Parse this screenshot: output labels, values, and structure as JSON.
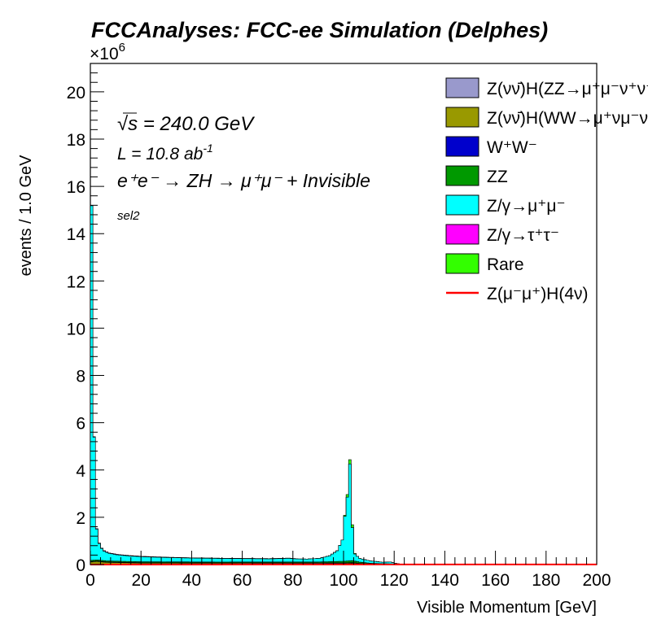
{
  "title": "FCCAnalyses: FCC-ee Simulation (Delphes)",
  "chart_data": {
    "type": "bar",
    "title": "FCCAnalyses: FCC-ee Simulation (Delphes)",
    "xlabel": "Visible Momentum [GeV]",
    "ylabel": "events / 1.0 GeV",
    "y_exponent_label": "×10",
    "y_exponent_power": "6",
    "xlim": [
      0,
      200
    ],
    "ylim": [
      0,
      21.2
    ],
    "x_ticks": [
      "0",
      "20",
      "40",
      "60",
      "80",
      "100",
      "120",
      "140",
      "160",
      "180",
      "200"
    ],
    "y_ticks": [
      "0",
      "2",
      "4",
      "6",
      "8",
      "10",
      "12",
      "14",
      "16",
      "18",
      "20"
    ],
    "stacked": true,
    "grid": false,
    "legend_position": "top-right",
    "annotations": {
      "energy_prefix": "√",
      "energy_label": "s = 240.0 GeV",
      "lumi_label": "L = 10.8 ab",
      "lumi_power": "-1",
      "process_label": "e⁺e⁻ → ZH → μ⁺μ⁻ + Invisible",
      "selection": "sel2"
    },
    "series": [
      {
        "name": "Z(νν̄)H(ZZ→μ⁺μ⁻ν⁺ν⁻)",
        "type": "fill",
        "color": "#9999cc",
        "values": [
          [
            0,
            0.01
          ],
          [
            100,
            0.02
          ],
          [
            103,
            0.04
          ],
          [
            106,
            0.01
          ],
          [
            120,
            0.0
          ]
        ]
      },
      {
        "name": "Z(νν̄)H(WW→μ⁺νμ⁻ν)",
        "type": "fill",
        "color": "#999900",
        "values": [
          [
            0,
            0.1
          ],
          [
            2,
            0.12
          ],
          [
            6,
            0.08
          ],
          [
            20,
            0.05
          ],
          [
            60,
            0.04
          ],
          [
            100,
            0.03
          ],
          [
            120,
            0.01
          ],
          [
            200,
            0.0
          ]
        ]
      },
      {
        "name": "W⁺W⁻",
        "type": "fill",
        "color": "#0000cc",
        "values": [
          [
            0,
            0.02
          ],
          [
            50,
            0.02
          ],
          [
            100,
            0.02
          ],
          [
            120,
            0.0
          ]
        ]
      },
      {
        "name": "ZZ",
        "type": "fill",
        "color": "#009900",
        "values": [
          [
            0,
            0.05
          ],
          [
            10,
            0.04
          ],
          [
            50,
            0.03
          ],
          [
            90,
            0.04
          ],
          [
            103,
            0.08
          ],
          [
            110,
            0.02
          ],
          [
            130,
            0.0
          ]
        ]
      },
      {
        "name": "Z/γ→μ⁺μ⁻",
        "type": "fill",
        "color": "#00ffff",
        "values": [
          [
            0,
            15.0
          ],
          [
            1,
            5.2
          ],
          [
            2,
            1.3
          ],
          [
            3,
            0.7
          ],
          [
            4,
            0.5
          ],
          [
            5,
            0.4
          ],
          [
            7,
            0.32
          ],
          [
            10,
            0.27
          ],
          [
            15,
            0.23
          ],
          [
            20,
            0.21
          ],
          [
            30,
            0.18
          ],
          [
            40,
            0.16
          ],
          [
            50,
            0.15
          ],
          [
            60,
            0.14
          ],
          [
            70,
            0.13
          ],
          [
            78,
            0.15
          ],
          [
            80,
            0.13
          ],
          [
            85,
            0.12
          ],
          [
            90,
            0.15
          ],
          [
            94,
            0.25
          ],
          [
            97,
            0.45
          ],
          [
            99,
            0.9
          ],
          [
            100,
            1.9
          ],
          [
            101,
            2.7
          ],
          [
            102,
            4.1
          ],
          [
            103,
            1.4
          ],
          [
            104,
            0.3
          ],
          [
            106,
            0.15
          ],
          [
            110,
            0.1
          ],
          [
            115,
            0.06
          ],
          [
            118,
            0.08
          ],
          [
            120,
            0.03
          ],
          [
            122,
            0.0
          ]
        ]
      },
      {
        "name": "Z/γ→τ⁺τ⁻",
        "type": "fill",
        "color": "#ff00ff",
        "values": [
          [
            0,
            0.02
          ],
          [
            40,
            0.01
          ],
          [
            80,
            0.01
          ]
        ]
      },
      {
        "name": "Rare",
        "type": "fill",
        "color": "#33ff00",
        "values": [
          [
            100,
            0.05
          ],
          [
            102,
            0.18
          ],
          [
            103,
            0.12
          ],
          [
            104,
            0.03
          ]
        ]
      },
      {
        "name": "Z(μ⁻μ⁺)H(4ν)",
        "type": "line",
        "color": "#ff0000",
        "values": [
          [
            0,
            0.0
          ],
          [
            120,
            0.005
          ],
          [
            200,
            0.005
          ]
        ]
      }
    ]
  }
}
